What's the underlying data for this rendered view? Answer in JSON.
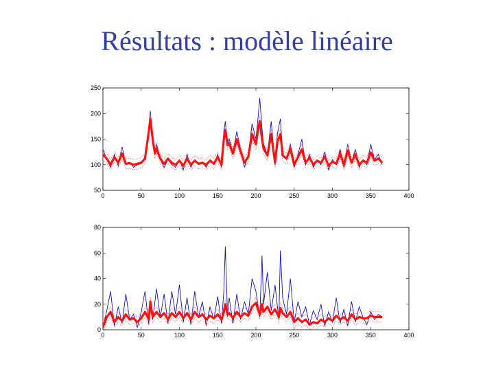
{
  "title": "Résultats : modèle linéaire",
  "colors": {
    "title": "#2f3fa6",
    "observed": "#1010c0",
    "model": "#ff1010",
    "model_band": "#ff5050",
    "axes": "#000000"
  },
  "chart_data": [
    {
      "type": "line",
      "xlim": [
        0,
        400
      ],
      "ylim": [
        50,
        250
      ],
      "xticks": [
        0,
        50,
        100,
        150,
        200,
        250,
        300,
        350,
        400
      ],
      "yticks": [
        50,
        100,
        150,
        200,
        250
      ],
      "grid": false,
      "series": [
        {
          "role": "observed",
          "color": "#1010c0",
          "style": "thin",
          "x": [
            0,
            5,
            10,
            15,
            20,
            25,
            30,
            35,
            40,
            45,
            50,
            55,
            60,
            62,
            65,
            68,
            70,
            75,
            80,
            85,
            90,
            95,
            100,
            105,
            110,
            115,
            120,
            125,
            130,
            135,
            140,
            145,
            150,
            155,
            158,
            160,
            163,
            165,
            170,
            175,
            180,
            185,
            190,
            195,
            200,
            203,
            205,
            208,
            210,
            215,
            220,
            225,
            228,
            232,
            235,
            240,
            245,
            250,
            255,
            260,
            265,
            270,
            275,
            280,
            285,
            290,
            295,
            300,
            305,
            310,
            315,
            320,
            325,
            330,
            335,
            340,
            345,
            350,
            355,
            360,
            365
          ],
          "values": [
            130,
            110,
            95,
            120,
            98,
            135,
            100,
            105,
            95,
            100,
            102,
            110,
            175,
            205,
            150,
            120,
            140,
            110,
            95,
            110,
            100,
            95,
            110,
            90,
            120,
            95,
            110,
            100,
            105,
            95,
            110,
            100,
            120,
            95,
            165,
            185,
            140,
            150,
            125,
            165,
            130,
            95,
            120,
            180,
            150,
            195,
            230,
            170,
            140,
            120,
            185,
            100,
            160,
            190,
            120,
            110,
            140,
            95,
            120,
            150,
            100,
            120,
            95,
            110,
            100,
            125,
            90,
            110,
            100,
            130,
            95,
            140,
            105,
            130,
            95,
            110,
            100,
            140,
            110,
            120,
            100
          ]
        },
        {
          "role": "model",
          "color": "#ff1010",
          "style": "thick",
          "x": [
            0,
            5,
            10,
            15,
            20,
            25,
            30,
            35,
            40,
            45,
            50,
            55,
            60,
            62,
            65,
            68,
            70,
            75,
            80,
            85,
            90,
            95,
            100,
            105,
            110,
            115,
            120,
            125,
            130,
            135,
            140,
            145,
            150,
            155,
            158,
            160,
            163,
            165,
            170,
            175,
            180,
            185,
            190,
            195,
            200,
            203,
            205,
            208,
            210,
            215,
            220,
            225,
            228,
            232,
            235,
            240,
            245,
            250,
            255,
            260,
            265,
            270,
            275,
            280,
            285,
            290,
            295,
            300,
            305,
            310,
            315,
            320,
            325,
            330,
            335,
            340,
            345,
            350,
            355,
            360,
            365
          ],
          "values": [
            120,
            112,
            100,
            115,
            104,
            122,
            102,
            103,
            100,
            102,
            104,
            112,
            165,
            190,
            150,
            122,
            132,
            112,
            102,
            112,
            104,
            100,
            108,
            98,
            112,
            100,
            108,
            102,
            104,
            100,
            108,
            102,
            115,
            100,
            150,
            168,
            138,
            142,
            122,
            150,
            126,
            104,
            116,
            160,
            140,
            170,
            185,
            150,
            132,
            118,
            160,
            104,
            145,
            160,
            118,
            112,
            132,
            100,
            115,
            130,
            104,
            114,
            100,
            108,
            104,
            116,
            98,
            106,
            102,
            122,
            100,
            128,
            104,
            120,
            100,
            108,
            104,
            124,
            108,
            112,
            104
          ]
        }
      ]
    },
    {
      "type": "line",
      "xlim": [
        0,
        400
      ],
      "ylim": [
        0,
        80
      ],
      "xticks": [
        0,
        50,
        100,
        150,
        200,
        250,
        300,
        350,
        400
      ],
      "yticks": [
        0,
        20,
        40,
        60,
        80
      ],
      "grid": false,
      "series": [
        {
          "role": "observed",
          "color": "#1010c0",
          "style": "thin",
          "x": [
            0,
            5,
            10,
            15,
            20,
            25,
            30,
            35,
            40,
            45,
            50,
            55,
            60,
            62,
            65,
            70,
            75,
            80,
            85,
            90,
            95,
            100,
            105,
            110,
            115,
            120,
            125,
            130,
            135,
            140,
            145,
            150,
            155,
            158,
            160,
            163,
            165,
            170,
            175,
            180,
            185,
            190,
            195,
            200,
            205,
            208,
            210,
            215,
            220,
            225,
            230,
            232,
            235,
            240,
            245,
            250,
            255,
            260,
            265,
            270,
            275,
            280,
            285,
            290,
            295,
            300,
            305,
            310,
            315,
            320,
            325,
            330,
            335,
            340,
            345,
            350,
            355,
            360,
            365
          ],
          "values": [
            2,
            15,
            30,
            3,
            18,
            5,
            28,
            8,
            12,
            2,
            14,
            30,
            4,
            22,
            8,
            32,
            10,
            28,
            5,
            30,
            12,
            35,
            6,
            25,
            4,
            30,
            10,
            22,
            3,
            18,
            8,
            26,
            5,
            30,
            65,
            10,
            25,
            5,
            28,
            8,
            22,
            12,
            40,
            30,
            10,
            58,
            20,
            45,
            15,
            35,
            8,
            62,
            25,
            12,
            40,
            6,
            22,
            10,
            18,
            4,
            15,
            8,
            20,
            3,
            14,
            6,
            25,
            5,
            16,
            3,
            22,
            6,
            18,
            10,
            4,
            14,
            8,
            12,
            10
          ]
        },
        {
          "role": "model",
          "color": "#ff1010",
          "style": "thick",
          "x": [
            0,
            5,
            10,
            15,
            20,
            25,
            30,
            35,
            40,
            45,
            50,
            55,
            60,
            62,
            65,
            70,
            75,
            80,
            85,
            90,
            95,
            100,
            105,
            110,
            115,
            120,
            125,
            130,
            135,
            140,
            145,
            150,
            155,
            158,
            160,
            163,
            165,
            170,
            175,
            180,
            185,
            190,
            195,
            200,
            205,
            208,
            210,
            215,
            220,
            225,
            230,
            232,
            235,
            240,
            245,
            250,
            255,
            260,
            265,
            270,
            275,
            280,
            285,
            290,
            295,
            300,
            305,
            310,
            315,
            320,
            325,
            330,
            335,
            340,
            345,
            350,
            355,
            360,
            365
          ],
          "values": [
            2,
            10,
            14,
            6,
            10,
            7,
            12,
            8,
            9,
            6,
            9,
            14,
            8,
            22,
            10,
            14,
            10,
            13,
            8,
            13,
            10,
            14,
            9,
            13,
            8,
            14,
            10,
            12,
            8,
            11,
            9,
            12,
            8,
            14,
            20,
            12,
            13,
            9,
            14,
            10,
            13,
            11,
            18,
            21,
            12,
            20,
            14,
            18,
            12,
            16,
            10,
            17,
            13,
            10,
            14,
            6,
            9,
            6,
            8,
            4,
            6,
            5,
            8,
            6,
            9,
            7,
            11,
            8,
            10,
            7,
            12,
            8,
            10,
            9,
            9,
            11,
            10,
            10,
            10
          ]
        }
      ]
    }
  ]
}
